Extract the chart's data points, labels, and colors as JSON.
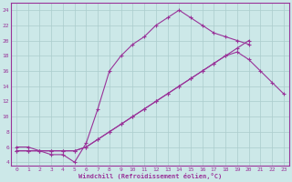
{
  "xlabel": "Windchill (Refroidissement éolien,°C)",
  "background_color": "#cce8e8",
  "grid_color": "#aacccc",
  "line_color": "#993399",
  "xlim_min": -0.5,
  "xlim_max": 23.5,
  "ylim_min": 3.5,
  "ylim_max": 25,
  "xticks": [
    0,
    1,
    2,
    3,
    4,
    5,
    6,
    7,
    8,
    9,
    10,
    11,
    12,
    13,
    14,
    15,
    16,
    17,
    18,
    19,
    20,
    21,
    22,
    23
  ],
  "yticks": [
    4,
    6,
    8,
    10,
    12,
    14,
    16,
    18,
    20,
    22,
    24
  ],
  "line1_x": [
    0,
    1,
    2,
    3,
    4,
    5,
    6,
    7,
    8,
    9,
    10,
    11,
    12,
    13,
    14,
    15,
    16,
    17,
    18,
    19,
    20
  ],
  "line1_y": [
    6,
    6,
    5.5,
    5,
    5,
    4,
    6.5,
    11,
    16,
    18,
    19.5,
    20.5,
    22,
    23,
    24,
    23,
    22,
    21,
    20.5,
    20,
    19.5
  ],
  "line2_x": [
    0,
    1,
    2,
    3,
    4,
    5,
    6,
    7,
    8,
    9,
    10,
    11,
    12,
    13,
    14,
    15,
    16,
    17,
    18,
    19,
    20,
    21,
    22,
    23
  ],
  "line2_y": [
    5.5,
    5.5,
    5.5,
    5.5,
    5.5,
    5.5,
    6,
    7,
    8,
    9,
    10,
    11,
    12,
    13,
    14,
    15,
    16,
    17,
    18,
    18.5,
    17.5,
    16,
    14.5,
    13
  ],
  "line3_x": [
    0,
    1,
    2,
    3,
    4,
    5,
    6,
    7,
    8,
    9,
    10,
    11,
    12,
    13,
    14,
    15,
    16,
    17,
    18,
    19,
    20
  ],
  "line3_y": [
    5.5,
    5.5,
    5.5,
    5.5,
    5.5,
    5.5,
    6,
    7,
    8,
    9,
    10,
    11,
    12,
    13,
    14,
    15,
    16,
    17,
    18,
    19,
    20
  ]
}
